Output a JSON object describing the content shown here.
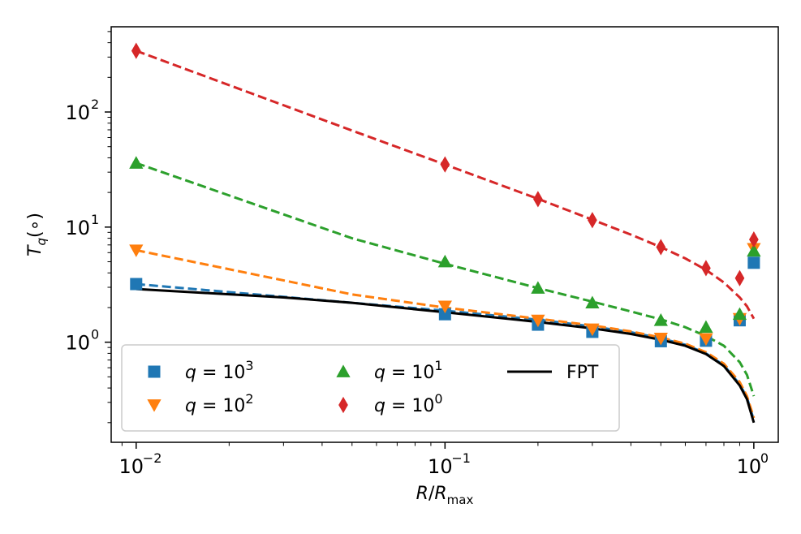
{
  "chart_data": {
    "type": "scatter",
    "title": "",
    "xlabel": "R/R_max",
    "ylabel": "T_q(∘)",
    "xscale": "log",
    "yscale": "log",
    "xlim": [
      0.0083,
      1.2
    ],
    "ylim": [
      0.135,
      550
    ],
    "x_ticks": [
      {
        "value": 0.01,
        "mantissa": "10",
        "exp": "−2"
      },
      {
        "value": 0.1,
        "mantissa": "10",
        "exp": "−1"
      },
      {
        "value": 1,
        "mantissa": "10",
        "exp": "0"
      }
    ],
    "y_ticks": [
      {
        "value": 1,
        "mantissa": "10",
        "exp": "0"
      },
      {
        "value": 10,
        "mantissa": "10",
        "exp": "1"
      },
      {
        "value": 100,
        "mantissa": "10",
        "exp": "2"
      }
    ],
    "legend_position": "lower-left",
    "series": [
      {
        "name": "q = 10^3",
        "label_var": "q = 10",
        "label_exp": "3",
        "color": "#1f77b4",
        "marker": "square",
        "x": [
          0.01,
          0.1,
          0.2,
          0.3,
          0.5,
          0.7,
          0.9,
          1.0
        ],
        "y": [
          3.2,
          1.75,
          1.42,
          1.23,
          1.02,
          1.03,
          1.55,
          4.9
        ],
        "fit_x": [
          0.01,
          0.05,
          0.1,
          0.2,
          0.3,
          0.4,
          0.5,
          0.6,
          0.7,
          0.8,
          0.9,
          0.95,
          1.0
        ],
        "fit_y": [
          3.2,
          2.2,
          1.88,
          1.57,
          1.37,
          1.22,
          1.08,
          0.95,
          0.8,
          0.63,
          0.43,
          0.33,
          0.21
        ]
      },
      {
        "name": "q = 10^2",
        "label_var": "q = 10",
        "label_exp": "2",
        "color": "#ff7f0e",
        "marker": "triangle-down",
        "x": [
          0.01,
          0.1,
          0.2,
          0.3,
          0.5,
          0.7,
          0.9,
          1.0
        ],
        "y": [
          6.3,
          2.05,
          1.55,
          1.3,
          1.08,
          1.07,
          1.6,
          6.5
        ],
        "fit_x": [
          0.01,
          0.05,
          0.1,
          0.2,
          0.3,
          0.4,
          0.5,
          0.6,
          0.7,
          0.8,
          0.9,
          0.95,
          1.0
        ],
        "fit_y": [
          6.3,
          2.6,
          2.0,
          1.6,
          1.4,
          1.24,
          1.1,
          0.97,
          0.82,
          0.65,
          0.45,
          0.34,
          0.22
        ]
      },
      {
        "name": "q = 10^1",
        "label_var": "q = 10",
        "label_exp": "1",
        "color": "#2ca02c",
        "marker": "triangle-up",
        "x": [
          0.01,
          0.1,
          0.2,
          0.3,
          0.5,
          0.7,
          0.9,
          1.0
        ],
        "y": [
          36,
          5.0,
          2.95,
          2.2,
          1.55,
          1.35,
          1.75,
          6.2
        ],
        "fit_x": [
          0.01,
          0.05,
          0.1,
          0.2,
          0.3,
          0.4,
          0.5,
          0.6,
          0.7,
          0.8,
          0.9,
          0.95,
          1.0
        ],
        "fit_y": [
          36,
          8.0,
          4.8,
          2.95,
          2.25,
          1.85,
          1.58,
          1.35,
          1.13,
          0.93,
          0.67,
          0.52,
          0.34
        ]
      },
      {
        "name": "q = 10^0",
        "label_var": "q = 10",
        "label_exp": "0",
        "color": "#d62728",
        "marker": "diamond",
        "x": [
          0.01,
          0.1,
          0.2,
          0.3,
          0.5,
          0.7,
          0.9,
          1.0
        ],
        "y": [
          340,
          35,
          17.5,
          11.5,
          6.7,
          4.4,
          3.6,
          7.8
        ],
        "fit_x": [
          0.01,
          0.05,
          0.1,
          0.2,
          0.3,
          0.4,
          0.5,
          0.6,
          0.7,
          0.8,
          0.9,
          0.95,
          1.0
        ],
        "fit_y": [
          340,
          69,
          35,
          17.6,
          11.6,
          8.6,
          6.7,
          5.35,
          4.25,
          3.3,
          2.45,
          2.05,
          1.6
        ]
      },
      {
        "name": "FPT",
        "label_var": "FPT",
        "label_exp": "",
        "color": "#000000",
        "marker": "line",
        "x": [
          0.01,
          0.03,
          0.05,
          0.1,
          0.2,
          0.3,
          0.4,
          0.5,
          0.6,
          0.7,
          0.8,
          0.9,
          0.95,
          1.0
        ],
        "y": [
          2.9,
          2.45,
          2.2,
          1.82,
          1.5,
          1.32,
          1.18,
          1.05,
          0.93,
          0.79,
          0.62,
          0.42,
          0.32,
          0.2
        ]
      }
    ]
  }
}
